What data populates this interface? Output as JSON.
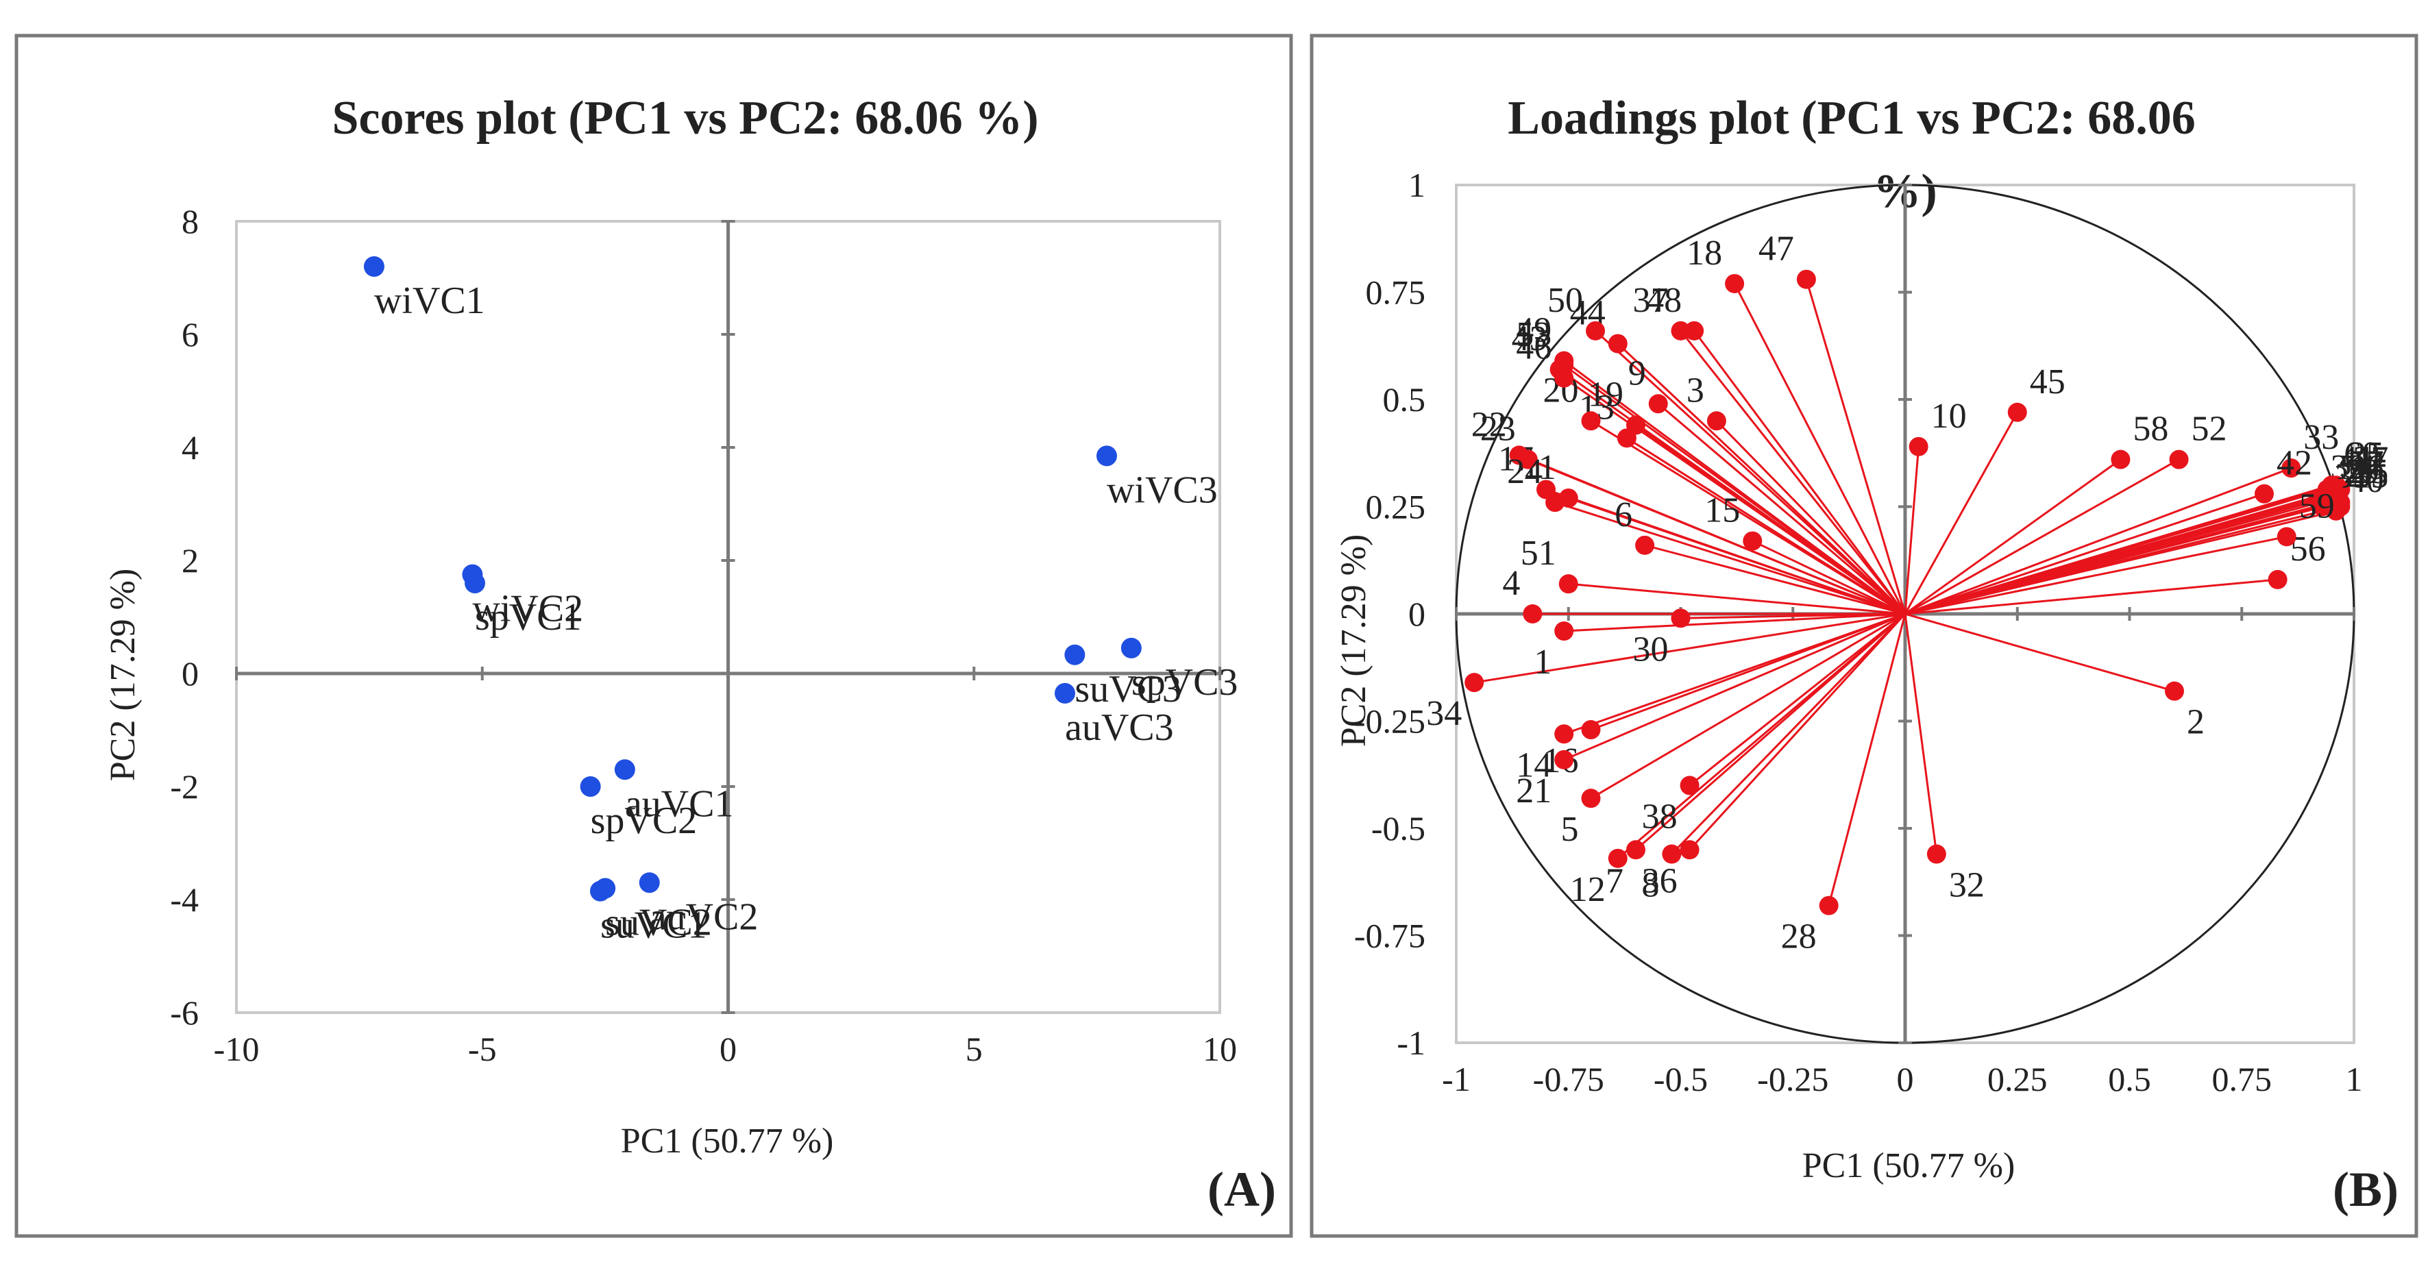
{
  "chart_data": [
    {
      "type": "scatter",
      "panel_tag": "(A)",
      "title": "Scores plot (PC1 vs PC2: 68.06 %)",
      "xlabel": "PC1 (50.77 %)",
      "ylabel": "PC2 (17.29 %)",
      "xlim": [
        -10,
        10
      ],
      "ylim": [
        -6,
        8
      ],
      "xticks": [
        "-10",
        "-5",
        "0",
        "5",
        "10"
      ],
      "yticks": [
        "8",
        "6",
        "4",
        "2",
        "0",
        "-2",
        "-4",
        "-6"
      ],
      "grid": false,
      "point_color": "#1f4fe0",
      "points": [
        {
          "label": "wiVC1",
          "x": -7.2,
          "y": 7.2
        },
        {
          "label": "wiVC2",
          "x": -5.2,
          "y": 1.75
        },
        {
          "label": "spVC1",
          "x": -5.15,
          "y": 1.6
        },
        {
          "label": "wiVC3",
          "x": 7.7,
          "y": 3.85
        },
        {
          "label": "spVC3",
          "x": 8.2,
          "y": 0.45
        },
        {
          "label": "suVC3",
          "x": 7.05,
          "y": 0.33
        },
        {
          "label": "auVC3",
          "x": 6.85,
          "y": -0.35
        },
        {
          "label": "auVC1",
          "x": -2.1,
          "y": -1.7
        },
        {
          "label": "spVC2",
          "x": -2.8,
          "y": -2.0
        },
        {
          "label": "auVC2",
          "x": -1.6,
          "y": -3.7
        },
        {
          "label": "suVC1",
          "x": -2.6,
          "y": -3.85
        },
        {
          "label": "suVC2",
          "x": -2.5,
          "y": -3.8
        }
      ]
    },
    {
      "type": "scatter",
      "subtype": "loadings",
      "panel_tag": "(B)",
      "title": "Loadings plot (PC1 vs PC2: 68.06",
      "title_tail": "%)",
      "xlabel": "PC1 (50.77 %)",
      "ylabel": "PC2 (17.29 %)",
      "xlim": [
        -1,
        1
      ],
      "ylim": [
        -1,
        1
      ],
      "xticks": [
        "-1",
        "-0.75",
        "-0.5",
        "-0.25",
        "0",
        "0.25",
        "0.5",
        "0.75",
        "1"
      ],
      "yticks": [
        "1",
        "0.75",
        "0.5",
        "0.25",
        "0",
        "-0.25",
        "-0.5",
        "-0.75",
        "-1"
      ],
      "unit_circle": true,
      "vector_color": "#e8141c",
      "vectors": [
        {
          "label": "1",
          "x": -0.76,
          "y": -0.04
        },
        {
          "label": "2",
          "x": 0.6,
          "y": -0.18
        },
        {
          "label": "3",
          "x": -0.42,
          "y": 0.45
        },
        {
          "label": "4",
          "x": -0.83,
          "y": 0.0
        },
        {
          "label": "5",
          "x": -0.7,
          "y": -0.43
        },
        {
          "label": "6",
          "x": -0.58,
          "y": 0.16
        },
        {
          "label": "7",
          "x": -0.6,
          "y": -0.55
        },
        {
          "label": "8",
          "x": -0.52,
          "y": -0.56
        },
        {
          "label": "9",
          "x": -0.55,
          "y": 0.49
        },
        {
          "label": "10",
          "x": 0.03,
          "y": 0.39
        },
        {
          "label": "11",
          "x": -0.75,
          "y": 0.27
        },
        {
          "label": "12",
          "x": -0.64,
          "y": -0.57
        },
        {
          "label": "13",
          "x": -0.62,
          "y": 0.41
        },
        {
          "label": "14",
          "x": -0.76,
          "y": -0.28
        },
        {
          "label": "15",
          "x": -0.34,
          "y": 0.17
        },
        {
          "label": "16",
          "x": -0.7,
          "y": -0.27
        },
        {
          "label": "17",
          "x": -0.8,
          "y": 0.29
        },
        {
          "label": "18",
          "x": -0.38,
          "y": 0.77
        },
        {
          "label": "19",
          "x": -0.6,
          "y": 0.44
        },
        {
          "label": "20",
          "x": -0.7,
          "y": 0.45
        },
        {
          "label": "21",
          "x": -0.76,
          "y": -0.34
        },
        {
          "label": "22",
          "x": -0.86,
          "y": 0.37
        },
        {
          "label": "23",
          "x": -0.84,
          "y": 0.36
        },
        {
          "label": "24",
          "x": -0.78,
          "y": 0.26
        },
        {
          "label": "25",
          "x": 0.96,
          "y": 0.3
        },
        {
          "label": "26",
          "x": 0.96,
          "y": 0.27
        },
        {
          "label": "27",
          "x": 0.97,
          "y": 0.29
        },
        {
          "label": "28",
          "x": -0.17,
          "y": -0.68
        },
        {
          "label": "29",
          "x": 0.95,
          "y": 0.26
        },
        {
          "label": "30",
          "x": -0.5,
          "y": -0.01
        },
        {
          "label": "31",
          "x": 0.93,
          "y": 0.25
        },
        {
          "label": "32",
          "x": 0.07,
          "y": -0.56
        },
        {
          "label": "33",
          "x": 0.86,
          "y": 0.34
        },
        {
          "label": "34",
          "x": -0.96,
          "y": -0.16
        },
        {
          "label": "35",
          "x": 0.97,
          "y": 0.25
        },
        {
          "label": "36",
          "x": -0.48,
          "y": -0.55
        },
        {
          "label": "37",
          "x": -0.5,
          "y": 0.66
        },
        {
          "label": "38",
          "x": -0.48,
          "y": -0.4
        },
        {
          "label": "39",
          "x": 0.92,
          "y": 0.27
        },
        {
          "label": "40",
          "x": 0.96,
          "y": 0.24
        },
        {
          "label": "41",
          "x": 0.94,
          "y": 0.29
        },
        {
          "label": "42",
          "x": 0.8,
          "y": 0.28
        },
        {
          "label": "43",
          "x": -0.77,
          "y": 0.57
        },
        {
          "label": "44",
          "x": -0.64,
          "y": 0.63
        },
        {
          "label": "45",
          "x": 0.25,
          "y": 0.47
        },
        {
          "label": "46",
          "x": -0.76,
          "y": 0.55
        },
        {
          "label": "47",
          "x": -0.22,
          "y": 0.78
        },
        {
          "label": "48",
          "x": -0.47,
          "y": 0.66
        },
        {
          "label": "49",
          "x": -0.76,
          "y": 0.59
        },
        {
          "label": "50",
          "x": -0.69,
          "y": 0.66
        },
        {
          "label": "51",
          "x": -0.75,
          "y": 0.07
        },
        {
          "label": "52",
          "x": 0.61,
          "y": 0.36
        },
        {
          "label": "53",
          "x": -0.76,
          "y": 0.58
        },
        {
          "label": "54",
          "x": 0.94,
          "y": 0.27
        },
        {
          "label": "55",
          "x": 0.97,
          "y": 0.26
        },
        {
          "label": "56",
          "x": 0.83,
          "y": 0.08
        },
        {
          "label": "57",
          "x": 0.96,
          "y": 0.28
        },
        {
          "label": "58",
          "x": 0.48,
          "y": 0.36
        },
        {
          "label": "59",
          "x": 0.85,
          "y": 0.18
        },
        {
          "label": "60",
          "x": 0.95,
          "y": 0.3
        }
      ]
    }
  ]
}
